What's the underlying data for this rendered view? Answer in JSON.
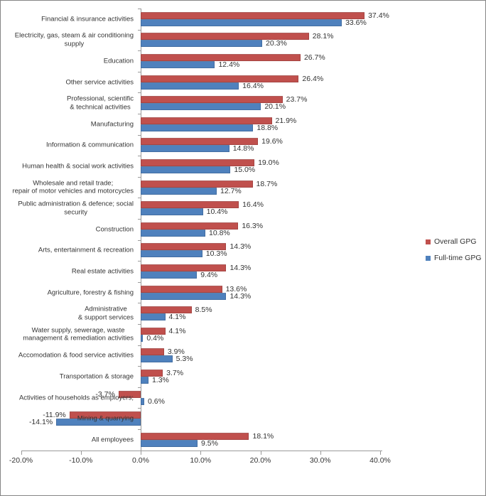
{
  "chart_data": {
    "type": "bar",
    "orientation": "horizontal",
    "categories": [
      {
        "lines": [
          "Financial & insurance activities"
        ]
      },
      {
        "lines": [
          "Electricity, gas, steam & air conditioning",
          "supply"
        ]
      },
      {
        "lines": [
          "Education"
        ]
      },
      {
        "lines": [
          "Other service activities"
        ]
      },
      {
        "lines": [
          "Professional, scientific",
          "& technical activities"
        ]
      },
      {
        "lines": [
          "Manufacturing"
        ]
      },
      {
        "lines": [
          "Information & communication"
        ]
      },
      {
        "lines": [
          "Human health & social work activities"
        ]
      },
      {
        "lines": [
          "Wholesale and retail trade;",
          "repair of motor vehicles and motorcycles"
        ]
      },
      {
        "lines": [
          "Public administration & defence; social",
          "security"
        ]
      },
      {
        "lines": [
          "Construction"
        ]
      },
      {
        "lines": [
          "Arts, entertainment & recreation"
        ]
      },
      {
        "lines": [
          "Real estate activities"
        ]
      },
      {
        "lines": [
          "Agriculture, forestry & fishing"
        ]
      },
      {
        "lines": [
          "Administrative",
          "& support services"
        ]
      },
      {
        "lines": [
          "Water supply, sewerage, waste",
          "management & remediation activities"
        ]
      },
      {
        "lines": [
          "Accomodation & food service activities"
        ]
      },
      {
        "lines": [
          "Transportation & storage"
        ]
      },
      {
        "lines": [
          "Activities of households as employers;"
        ]
      },
      {
        "lines": [
          "Mining & quarrying"
        ]
      },
      {
        "lines": [
          "All employees"
        ]
      }
    ],
    "series": [
      {
        "name": "Overall GPG",
        "color": "#c0504d",
        "values": [
          37.4,
          28.1,
          26.7,
          26.4,
          23.7,
          21.9,
          19.6,
          19.0,
          18.7,
          16.4,
          16.3,
          14.3,
          14.3,
          13.6,
          8.5,
          4.1,
          3.9,
          3.7,
          -3.7,
          -11.9,
          18.1
        ],
        "value_labels": [
          "37.4%",
          "28.1%",
          "26.7%",
          "26.4%",
          "23.7%",
          "21.9%",
          "19.6%",
          "19.0%",
          "18.7%",
          "16.4%",
          "16.3%",
          "14.3%",
          "14.3%",
          "13.6%",
          "8.5%",
          "4.1%",
          "3.9%",
          "3.7%",
          "-3.7%",
          "-11.9%",
          "18.1%"
        ]
      },
      {
        "name": "Full-time GPG",
        "color": "#4f81bd",
        "values": [
          33.6,
          20.3,
          12.4,
          16.4,
          20.1,
          18.8,
          14.8,
          15.0,
          12.7,
          10.4,
          10.8,
          10.3,
          9.4,
          14.3,
          4.1,
          0.4,
          5.3,
          1.3,
          0.6,
          -14.1,
          9.5
        ],
        "value_labels": [
          "33.6%",
          "20.3%",
          "12.4%",
          "16.4%",
          "20.1%",
          "18.8%",
          "14.8%",
          "15.0%",
          "12.7%",
          "10.4%",
          "10.8%",
          "10.3%",
          "9.4%",
          "14.3%",
          "4.1%",
          "0.4%",
          "5.3%",
          "1.3%",
          "0.6%",
          "-14.1%",
          "9.5%"
        ]
      }
    ],
    "xlim": [
      -20,
      40
    ],
    "x_ticks": [
      {
        "value": -20,
        "label": "-20.0%"
      },
      {
        "value": -10,
        "label": "-10.0%"
      },
      {
        "value": 0,
        "label": "0.0%"
      },
      {
        "value": 10,
        "label": "10.0%"
      },
      {
        "value": 20,
        "label": "20.0%"
      },
      {
        "value": 30,
        "label": "30.0%"
      },
      {
        "value": 40,
        "label": "40.0%"
      }
    ],
    "grid": false,
    "legend_position": "right"
  }
}
